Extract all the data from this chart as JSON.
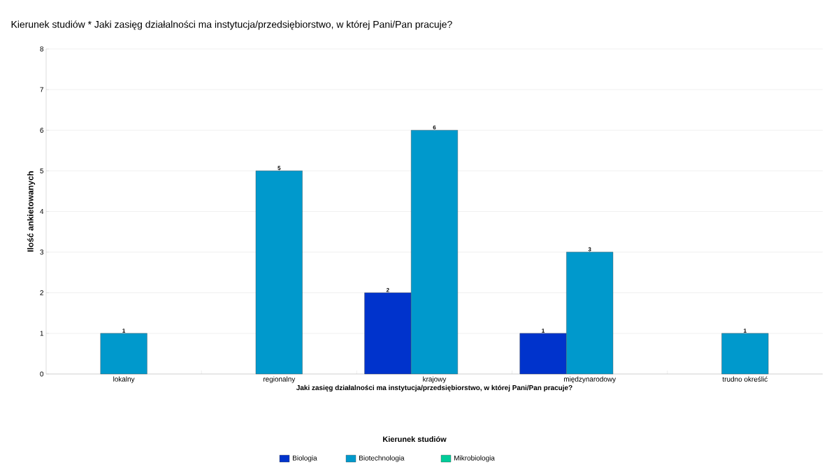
{
  "chart_data": {
    "type": "bar",
    "title": "Kierunek studiów * Jaki zasięg działalności ma instytucja/przedsiębiorstwo, w której Pani/Pan pracuje?",
    "xlabel": "Jaki zasięg działalności ma instytucja/przedsiębiorstwo, w której Pani/Pan pracuje?",
    "ylabel": "Ilość ankietowanych",
    "legend_title": "Kierunek studiów",
    "categories": [
      "lokalny",
      "regionalny",
      "krajowy",
      "międzynarodowy",
      "trudno określić"
    ],
    "series": [
      {
        "name": "Biologia",
        "color": "#0033cc",
        "values": [
          null,
          null,
          2,
          1,
          null
        ]
      },
      {
        "name": "Biotechnologia",
        "color": "#0099cc",
        "values": [
          1,
          5,
          6,
          3,
          1
        ]
      },
      {
        "name": "Mikrobiologia",
        "color": "#00cc99",
        "values": [
          null,
          null,
          null,
          null,
          null
        ]
      }
    ],
    "ylim": [
      0,
      8
    ],
    "yticks": [
      0,
      1,
      2,
      3,
      4,
      5,
      6,
      7,
      8
    ],
    "grid": "y",
    "legend": "bottom",
    "data_labels": true
  }
}
